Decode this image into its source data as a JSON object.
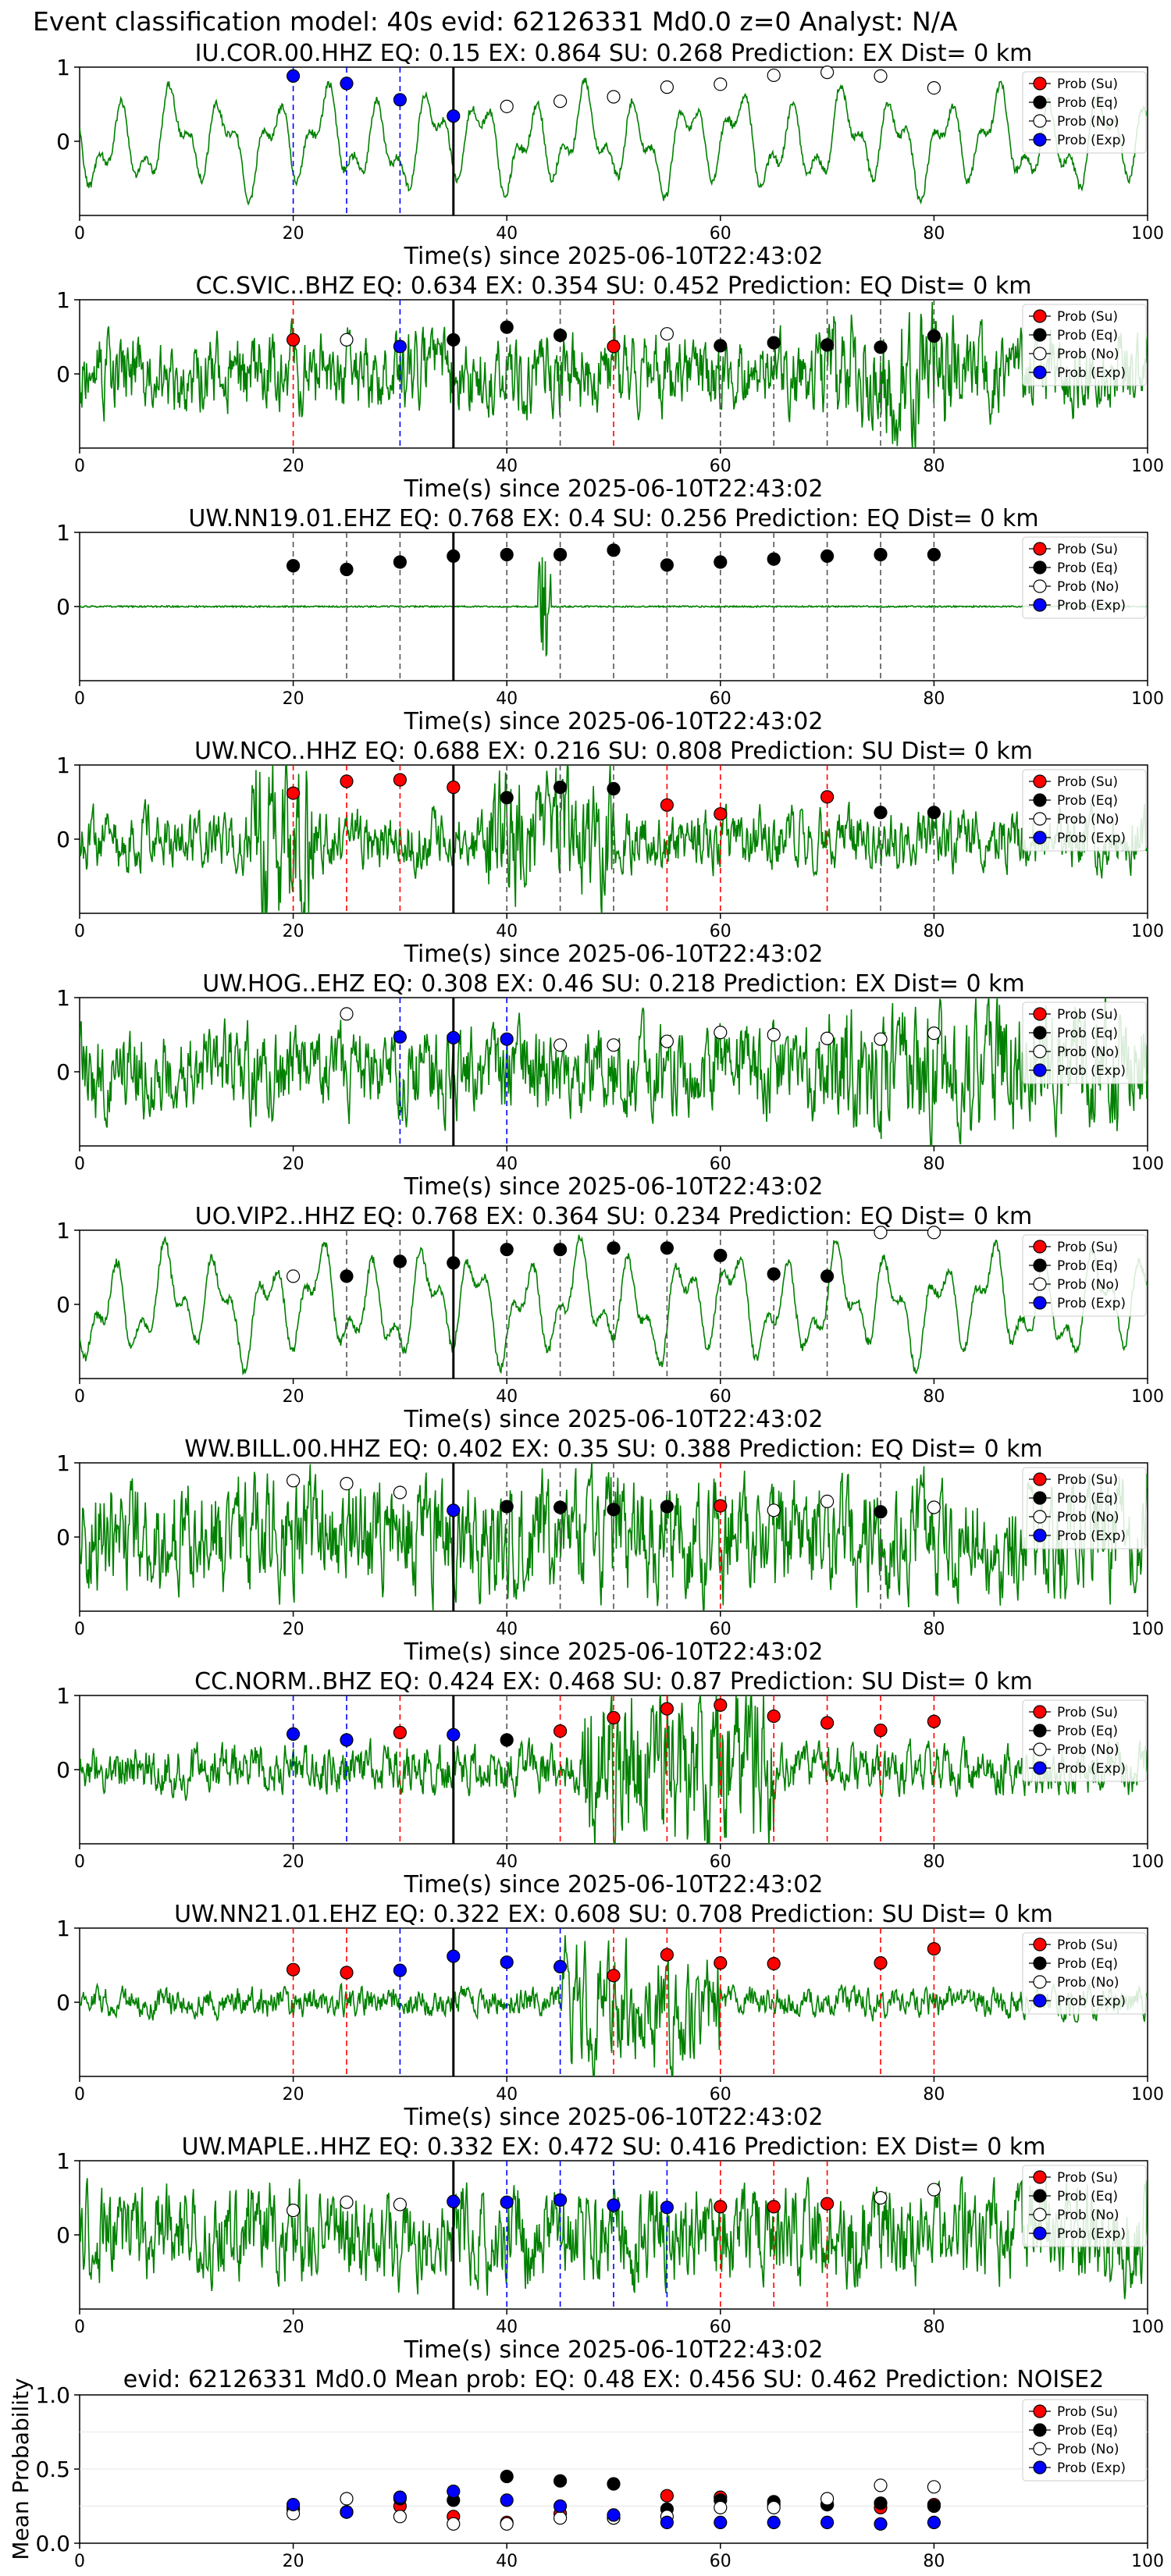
{
  "figure": {
    "title": "Event classification model: 40s evid: 62126331 Md0.0 z=0 Analyst: N/A"
  },
  "chart_data": {
    "type": "line",
    "legend_labels": [
      "Prob (Su)",
      "Prob (Eq)",
      "Prob (No)",
      "Prob (Exp)"
    ],
    "colors": {
      "trace": "#008000",
      "su": "#ff0000",
      "eq": "#000000",
      "no": "#ffffff",
      "exp": "#0000ff",
      "eq_line": "#555555",
      "current_time": "#000000"
    },
    "xlim": [
      0,
      100
    ],
    "xticks": [
      0,
      20,
      40,
      60,
      80,
      100
    ],
    "current_time": 35,
    "times": [
      20,
      25,
      30,
      35,
      40,
      45,
      50,
      55,
      60,
      65,
      70,
      75,
      80
    ],
    "panels": [
      {
        "title": "IU.COR.00.HHZ   EQ: 0.15   EX: 0.864   SU: 0.268   Prediction: EX    Dist= 0 km",
        "xlabel": "Time(s) since 2025-06-10T22:43:02",
        "ylim": [
          -1,
          1
        ],
        "yticks": [
          0,
          1
        ],
        "trace": {
          "style": "smooth",
          "amp": 0.72,
          "seed": 11
        },
        "points": [
          {
            "t": 20,
            "p": 0.88,
            "c": "exp"
          },
          {
            "t": 25,
            "p": 0.78,
            "c": "exp"
          },
          {
            "t": 30,
            "p": 0.56,
            "c": "exp"
          },
          {
            "t": 35,
            "p": 0.34,
            "c": "exp"
          },
          {
            "t": 40,
            "p": 0.47,
            "c": "no"
          },
          {
            "t": 45,
            "p": 0.54,
            "c": "no"
          },
          {
            "t": 50,
            "p": 0.6,
            "c": "no"
          },
          {
            "t": 55,
            "p": 0.73,
            "c": "no"
          },
          {
            "t": 60,
            "p": 0.77,
            "c": "no"
          },
          {
            "t": 65,
            "p": 0.89,
            "c": "no"
          },
          {
            "t": 70,
            "p": 0.93,
            "c": "no"
          },
          {
            "t": 75,
            "p": 0.88,
            "c": "no"
          },
          {
            "t": 80,
            "p": 0.72,
            "c": "no"
          }
        ]
      },
      {
        "title": "CC.SVIC..BHZ   EQ: 0.634   EX: 0.354   SU: 0.452   Prediction: EQ     Dist= 0 km",
        "xlabel": "Time(s) since 2025-06-10T22:43:02",
        "ylim": [
          -1,
          1
        ],
        "yticks": [
          0,
          1
        ],
        "trace": {
          "style": "noisy",
          "amp": 0.4,
          "seed": 23
        },
        "points": [
          {
            "t": 20,
            "p": 0.46,
            "c": "su"
          },
          {
            "t": 25,
            "p": 0.46,
            "c": "no"
          },
          {
            "t": 30,
            "p": 0.37,
            "c": "exp"
          },
          {
            "t": 35,
            "p": 0.46,
            "c": "eq"
          },
          {
            "t": 40,
            "p": 0.63,
            "c": "eq"
          },
          {
            "t": 45,
            "p": 0.52,
            "c": "eq"
          },
          {
            "t": 50,
            "p": 0.37,
            "c": "su"
          },
          {
            "t": 55,
            "p": 0.54,
            "c": "no"
          },
          {
            "t": 60,
            "p": 0.38,
            "c": "eq"
          },
          {
            "t": 65,
            "p": 0.42,
            "c": "eq"
          },
          {
            "t": 70,
            "p": 0.39,
            "c": "eq"
          },
          {
            "t": 75,
            "p": 0.36,
            "c": "eq"
          },
          {
            "t": 80,
            "p": 0.51,
            "c": "eq"
          }
        ]
      },
      {
        "title": "UW.NN19.01.EHZ    EQ: 0.768   EX: 0.4   SU: 0.256    Prediction: EQ     Dist= 0 km",
        "xlabel": "Time(s) since 2025-06-10T22:43:02",
        "ylim": [
          -1,
          1
        ],
        "yticks": [
          0,
          1
        ],
        "trace": {
          "style": "flat",
          "amp": 0.02,
          "seed": 31
        },
        "points": [
          {
            "t": 20,
            "p": 0.55,
            "c": "eq"
          },
          {
            "t": 25,
            "p": 0.5,
            "c": "eq"
          },
          {
            "t": 30,
            "p": 0.6,
            "c": "eq"
          },
          {
            "t": 35,
            "p": 0.68,
            "c": "eq"
          },
          {
            "t": 40,
            "p": 0.7,
            "c": "eq"
          },
          {
            "t": 45,
            "p": 0.7,
            "c": "eq"
          },
          {
            "t": 50,
            "p": 0.76,
            "c": "eq"
          },
          {
            "t": 55,
            "p": 0.56,
            "c": "eq"
          },
          {
            "t": 60,
            "p": 0.6,
            "c": "eq"
          },
          {
            "t": 65,
            "p": 0.64,
            "c": "eq"
          },
          {
            "t": 70,
            "p": 0.68,
            "c": "eq"
          },
          {
            "t": 75,
            "p": 0.7,
            "c": "eq"
          },
          {
            "t": 80,
            "p": 0.7,
            "c": "eq"
          }
        ]
      },
      {
        "title": "UW.NCO..HHZ   EQ: 0.688   EX: 0.216   SU: 0.808    Prediction: SU     Dist= 0 km",
        "xlabel": "Time(s) since 2025-06-10T22:43:02",
        "ylim": [
          -1,
          1
        ],
        "yticks": [
          0,
          1
        ],
        "trace": {
          "style": "noisy",
          "amp": 0.3,
          "seed": 47
        },
        "points": [
          {
            "t": 20,
            "p": 0.62,
            "c": "su"
          },
          {
            "t": 25,
            "p": 0.78,
            "c": "su"
          },
          {
            "t": 30,
            "p": 0.8,
            "c": "su"
          },
          {
            "t": 35,
            "p": 0.7,
            "c": "su"
          },
          {
            "t": 40,
            "p": 0.56,
            "c": "eq"
          },
          {
            "t": 45,
            "p": 0.7,
            "c": "eq"
          },
          {
            "t": 50,
            "p": 0.68,
            "c": "eq"
          },
          {
            "t": 55,
            "p": 0.46,
            "c": "su"
          },
          {
            "t": 60,
            "p": 0.34,
            "c": "su"
          },
          {
            "t": 70,
            "p": 0.57,
            "c": "su"
          },
          {
            "t": 75,
            "p": 0.36,
            "c": "eq"
          },
          {
            "t": 80,
            "p": 0.36,
            "c": "eq"
          }
        ]
      },
      {
        "title": "UW.HOG..EHZ    EQ: 0.308   EX: 0.46   SU: 0.218   Prediction: EX    Dist= 0 km",
        "xlabel": "Time(s) since 2025-06-10T22:43:02",
        "ylim": [
          -1,
          1
        ],
        "yticks": [
          0,
          1
        ],
        "trace": {
          "style": "noisy",
          "amp": 0.45,
          "seed": 53
        },
        "points": [
          {
            "t": 25,
            "p": 0.78,
            "c": "no"
          },
          {
            "t": 30,
            "p": 0.47,
            "c": "exp"
          },
          {
            "t": 35,
            "p": 0.46,
            "c": "exp"
          },
          {
            "t": 40,
            "p": 0.44,
            "c": "exp"
          },
          {
            "t": 45,
            "p": 0.36,
            "c": "no"
          },
          {
            "t": 50,
            "p": 0.36,
            "c": "no"
          },
          {
            "t": 55,
            "p": 0.41,
            "c": "no"
          },
          {
            "t": 60,
            "p": 0.53,
            "c": "no"
          },
          {
            "t": 65,
            "p": 0.5,
            "c": "no"
          },
          {
            "t": 70,
            "p": 0.45,
            "c": "no"
          },
          {
            "t": 75,
            "p": 0.44,
            "c": "no"
          },
          {
            "t": 80,
            "p": 0.52,
            "c": "no"
          }
        ]
      },
      {
        "title": "UO.VIP2..HHZ    EQ: 0.768   EX: 0.364   SU: 0.234    Prediction: EQ     Dist= 0 km",
        "xlabel": "Time(s) since 2025-06-10T22:43:02",
        "ylim": [
          -1,
          1
        ],
        "yticks": [
          0,
          1
        ],
        "trace": {
          "style": "smooth",
          "amp": 0.8,
          "seed": 61
        },
        "points": [
          {
            "t": 20,
            "p": 0.38,
            "c": "no"
          },
          {
            "t": 25,
            "p": 0.38,
            "c": "eq"
          },
          {
            "t": 30,
            "p": 0.58,
            "c": "eq"
          },
          {
            "t": 35,
            "p": 0.56,
            "c": "eq"
          },
          {
            "t": 40,
            "p": 0.74,
            "c": "eq"
          },
          {
            "t": 45,
            "p": 0.74,
            "c": "eq"
          },
          {
            "t": 50,
            "p": 0.76,
            "c": "eq"
          },
          {
            "t": 55,
            "p": 0.76,
            "c": "eq"
          },
          {
            "t": 60,
            "p": 0.66,
            "c": "eq"
          },
          {
            "t": 65,
            "p": 0.41,
            "c": "eq"
          },
          {
            "t": 70,
            "p": 0.38,
            "c": "eq"
          },
          {
            "t": 75,
            "p": 0.97,
            "c": "no"
          },
          {
            "t": 80,
            "p": 0.97,
            "c": "no"
          }
        ]
      },
      {
        "title": "WW.BILL.00.HHZ    EQ: 0.402   EX: 0.35   SU: 0.388    Prediction: EQ     Dist= 0 km",
        "xlabel": "Time(s) since 2025-06-10T22:43:02",
        "ylim": [
          -1,
          1
        ],
        "yticks": [
          0,
          1
        ],
        "trace": {
          "style": "noisy",
          "amp": 0.6,
          "seed": 71
        },
        "points": [
          {
            "t": 20,
            "p": 0.76,
            "c": "no"
          },
          {
            "t": 25,
            "p": 0.72,
            "c": "no"
          },
          {
            "t": 30,
            "p": 0.6,
            "c": "no"
          },
          {
            "t": 35,
            "p": 0.36,
            "c": "exp"
          },
          {
            "t": 40,
            "p": 0.41,
            "c": "eq"
          },
          {
            "t": 45,
            "p": 0.4,
            "c": "eq"
          },
          {
            "t": 50,
            "p": 0.37,
            "c": "eq"
          },
          {
            "t": 55,
            "p": 0.41,
            "c": "eq"
          },
          {
            "t": 60,
            "p": 0.42,
            "c": "su"
          },
          {
            "t": 65,
            "p": 0.36,
            "c": "no"
          },
          {
            "t": 70,
            "p": 0.48,
            "c": "no"
          },
          {
            "t": 75,
            "p": 0.34,
            "c": "eq"
          },
          {
            "t": 80,
            "p": 0.4,
            "c": "no"
          }
        ]
      },
      {
        "title": "CC.NORM..BHZ   EQ: 0.424   EX: 0.468   SU: 0.87    Prediction: SU     Dist= 0 km",
        "xlabel": "Time(s) since 2025-06-10T22:43:02",
        "ylim": [
          -1,
          1
        ],
        "yticks": [
          0,
          1
        ],
        "trace": {
          "style": "noisy",
          "amp": 0.25,
          "seed": 83
        },
        "points": [
          {
            "t": 20,
            "p": 0.48,
            "c": "exp"
          },
          {
            "t": 25,
            "p": 0.4,
            "c": "exp"
          },
          {
            "t": 30,
            "p": 0.5,
            "c": "su"
          },
          {
            "t": 35,
            "p": 0.47,
            "c": "exp"
          },
          {
            "t": 40,
            "p": 0.4,
            "c": "eq"
          },
          {
            "t": 45,
            "p": 0.52,
            "c": "su"
          },
          {
            "t": 50,
            "p": 0.7,
            "c": "su"
          },
          {
            "t": 55,
            "p": 0.82,
            "c": "su"
          },
          {
            "t": 60,
            "p": 0.87,
            "c": "su"
          },
          {
            "t": 65,
            "p": 0.72,
            "c": "su"
          },
          {
            "t": 70,
            "p": 0.63,
            "c": "su"
          },
          {
            "t": 75,
            "p": 0.53,
            "c": "su"
          },
          {
            "t": 80,
            "p": 0.65,
            "c": "su"
          }
        ]
      },
      {
        "title": "UW.NN21.01.EHZ    EQ: 0.322   EX: 0.608   SU: 0.708    Prediction: SU     Dist= 0 km",
        "xlabel": "Time(s) since 2025-06-10T22:43:02",
        "ylim": [
          -1,
          1
        ],
        "yticks": [
          0,
          1
        ],
        "trace": {
          "style": "noisy",
          "amp": 0.15,
          "seed": 97
        },
        "points": [
          {
            "t": 20,
            "p": 0.44,
            "c": "su"
          },
          {
            "t": 25,
            "p": 0.4,
            "c": "su"
          },
          {
            "t": 30,
            "p": 0.43,
            "c": "exp"
          },
          {
            "t": 35,
            "p": 0.62,
            "c": "exp"
          },
          {
            "t": 40,
            "p": 0.54,
            "c": "exp"
          },
          {
            "t": 45,
            "p": 0.48,
            "c": "exp"
          },
          {
            "t": 50,
            "p": 0.36,
            "c": "su"
          },
          {
            "t": 55,
            "p": 0.64,
            "c": "su"
          },
          {
            "t": 60,
            "p": 0.53,
            "c": "su"
          },
          {
            "t": 65,
            "p": 0.52,
            "c": "su"
          },
          {
            "t": 75,
            "p": 0.53,
            "c": "su"
          },
          {
            "t": 80,
            "p": 0.72,
            "c": "su"
          }
        ]
      },
      {
        "title": "UW.MAPLE..HHZ    EQ: 0.332   EX: 0.472   SU: 0.416    Prediction: EX     Dist= 0 km",
        "xlabel": "Time(s) since 2025-06-10T22:43:02",
        "ylim": [
          -1,
          1
        ],
        "yticks": [
          0,
          1
        ],
        "trace": {
          "style": "noisy",
          "amp": 0.5,
          "seed": 101
        },
        "points": [
          {
            "t": 20,
            "p": 0.33,
            "c": "no"
          },
          {
            "t": 25,
            "p": 0.44,
            "c": "no"
          },
          {
            "t": 30,
            "p": 0.41,
            "c": "no"
          },
          {
            "t": 35,
            "p": 0.45,
            "c": "exp"
          },
          {
            "t": 40,
            "p": 0.44,
            "c": "exp"
          },
          {
            "t": 45,
            "p": 0.47,
            "c": "exp"
          },
          {
            "t": 50,
            "p": 0.4,
            "c": "exp"
          },
          {
            "t": 55,
            "p": 0.37,
            "c": "exp"
          },
          {
            "t": 60,
            "p": 0.38,
            "c": "su"
          },
          {
            "t": 65,
            "p": 0.38,
            "c": "su"
          },
          {
            "t": 70,
            "p": 0.42,
            "c": "su"
          },
          {
            "t": 75,
            "p": 0.5,
            "c": "no"
          },
          {
            "t": 80,
            "p": 0.61,
            "c": "no"
          }
        ]
      }
    ],
    "summary": {
      "title": "evid: 62126331  Md0.0   Mean prob:    EQ: 0.48   EX: 0.456   SU: 0.462   Prediction: NOISE2",
      "ylabel": "Mean Probability",
      "ylim": [
        0,
        1
      ],
      "yticks": [
        0.0,
        0.5,
        1.0
      ],
      "yticklabels": [
        "0.0",
        "0.5",
        "1.0"
      ],
      "series": [
        {
          "name": "Prob (Su)",
          "key": "su",
          "values": [
            0.23,
            0.21,
            0.25,
            0.18,
            0.14,
            0.2,
            0.17,
            0.32,
            0.31,
            0.26,
            0.26,
            0.24,
            0.26
          ]
        },
        {
          "name": "Prob (Eq)",
          "key": "eq",
          "values": [
            0.24,
            0.21,
            0.3,
            0.29,
            0.45,
            0.42,
            0.4,
            0.23,
            0.29,
            0.28,
            0.26,
            0.27,
            0.25
          ]
        },
        {
          "name": "Prob (No)",
          "key": "no",
          "values": [
            0.2,
            0.3,
            0.18,
            0.13,
            0.13,
            0.17,
            0.17,
            0.18,
            0.24,
            0.24,
            0.3,
            0.39,
            0.38
          ]
        },
        {
          "name": "Prob (Exp)",
          "key": "exp",
          "values": [
            0.26,
            0.21,
            0.31,
            0.35,
            0.29,
            0.25,
            0.19,
            0.14,
            0.14,
            0.14,
            0.14,
            0.13,
            0.14
          ]
        }
      ]
    }
  }
}
